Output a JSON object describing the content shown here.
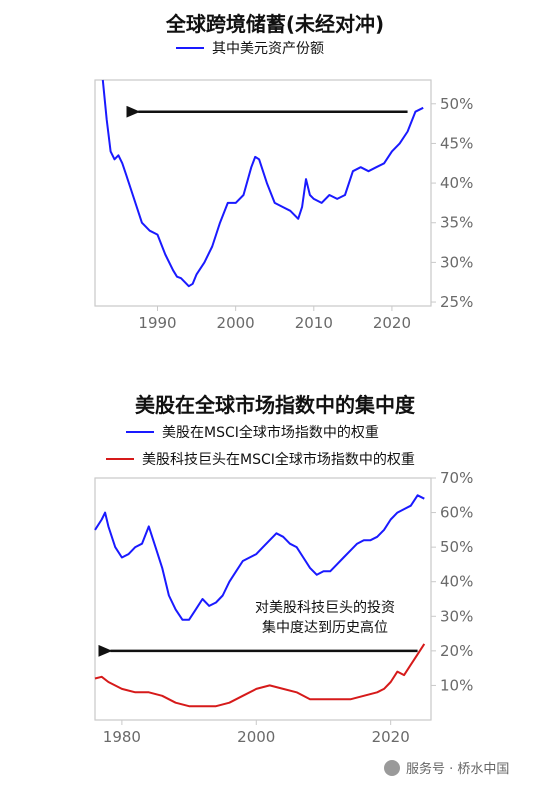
{
  "chart_data": [
    {
      "type": "line",
      "title": "全球跨境储蓄(未经对冲)",
      "xlim": [
        1982,
        2025
      ],
      "ylim": [
        24.5,
        53
      ],
      "x_ticks": [
        1990,
        2000,
        2010,
        2020
      ],
      "y_ticks": [
        25,
        30,
        35,
        40,
        45,
        50
      ],
      "x_tick_labels": [
        "1990",
        "2000",
        "2010",
        "2020"
      ],
      "y_tick_labels": [
        "25%",
        "30%",
        "35%",
        "40%",
        "45%",
        "50%"
      ],
      "legend_position": "top-center",
      "grid": false,
      "series": [
        {
          "name": "其中美元资产份额",
          "color": "#1a1aff",
          "x": [
            1983,
            1983.5,
            1984,
            1984.5,
            1985,
            1985.5,
            1986,
            1987,
            1988,
            1989,
            1990,
            1991,
            1992,
            1992.5,
            1993,
            1993.5,
            1994,
            1994.5,
            1995,
            1996,
            1997,
            1998,
            1999,
            2000,
            2001,
            2002,
            2002.5,
            2003,
            2004,
            2005,
            2006,
            2007,
            2008,
            2008.5,
            2009,
            2009.5,
            2010,
            2011,
            2012,
            2013,
            2014,
            2015,
            2016,
            2017,
            2018,
            2019,
            2020,
            2021,
            2022,
            2023,
            2024
          ],
          "y": [
            53,
            48,
            44,
            43,
            43.5,
            42.5,
            41,
            38,
            35,
            34,
            33.5,
            31,
            29,
            28.2,
            28,
            27.5,
            27,
            27.3,
            28.5,
            30,
            32,
            35,
            37.5,
            37.5,
            38.5,
            42,
            43.3,
            43,
            40,
            37.5,
            37,
            36.5,
            35.5,
            37,
            40.5,
            38.5,
            38,
            37.5,
            38.5,
            38,
            38.5,
            41.5,
            42,
            41.5,
            42,
            42.5,
            44,
            45,
            46.5,
            49,
            49.5
          ]
        }
      ],
      "annotations": [
        {
          "type": "arrow",
          "direction": "left",
          "from_x": 2022,
          "to_x": 1986,
          "y": 49
        }
      ]
    },
    {
      "type": "line",
      "title": "美股在全球市场指数中的集中度",
      "xlim": [
        1976,
        2026
      ],
      "ylim": [
        0,
        70
      ],
      "x_ticks": [
        1980,
        2000,
        2020
      ],
      "y_ticks": [
        10,
        20,
        30,
        40,
        50,
        60,
        70
      ],
      "x_tick_labels": [
        "1980",
        "2000",
        "2020"
      ],
      "y_tick_labels": [
        "10%",
        "20%",
        "30%",
        "40%",
        "50%",
        "60%",
        "70%"
      ],
      "legend_position": "top-left",
      "grid": false,
      "series": [
        {
          "name": "美股在MSCI全球市场指数中的权重",
          "color": "#1a1aff",
          "x": [
            1976,
            1977,
            1977.5,
            1978,
            1979,
            1980,
            1981,
            1982,
            1983,
            1984,
            1985,
            1986,
            1987,
            1988,
            1989,
            1990,
            1991,
            1992,
            1993,
            1994,
            1995,
            1996,
            1997,
            1998,
            1999,
            2000,
            2001,
            2002,
            2003,
            2004,
            2005,
            2006,
            2007,
            2008,
            2009,
            2010,
            2011,
            2012,
            2013,
            2014,
            2015,
            2016,
            2017,
            2018,
            2019,
            2020,
            2021,
            2022,
            2023,
            2024,
            2025
          ],
          "y": [
            55,
            58,
            60,
            56,
            50,
            47,
            48,
            50,
            51,
            56,
            50,
            44,
            36,
            32,
            29,
            29,
            32,
            35,
            33,
            34,
            36,
            40,
            43,
            46,
            47,
            48,
            50,
            52,
            54,
            53,
            51,
            50,
            47,
            44,
            42,
            43,
            43,
            45,
            47,
            49,
            51,
            52,
            52,
            53,
            55,
            58,
            60,
            61,
            62,
            65,
            64
          ]
        },
        {
          "name": "美股科技巨头在MSCI全球市场指数中的权重",
          "color": "#d61a1a",
          "x": [
            1976,
            1977,
            1978,
            1980,
            1982,
            1984,
            1986,
            1988,
            1990,
            1992,
            1994,
            1996,
            1998,
            2000,
            2002,
            2004,
            2006,
            2008,
            2010,
            2012,
            2014,
            2016,
            2018,
            2019,
            2020,
            2021,
            2022,
            2023,
            2024,
            2025
          ],
          "y": [
            12,
            12.5,
            11,
            9,
            8,
            8,
            7,
            5,
            4,
            4,
            4,
            5,
            7,
            9,
            10,
            9,
            8,
            6,
            6,
            6,
            6,
            7,
            8,
            9,
            11,
            14,
            13,
            16,
            19,
            22
          ]
        }
      ],
      "annotations": [
        {
          "type": "arrow",
          "direction": "left",
          "from_x": 2024,
          "to_x": 1976.5,
          "y": 20
        },
        {
          "type": "text",
          "lines": [
            "对美股科技巨头的投资",
            "集中度达到历史高位"
          ]
        }
      ]
    }
  ],
  "watermark": {
    "text": "服务号 · 桥水中国"
  }
}
